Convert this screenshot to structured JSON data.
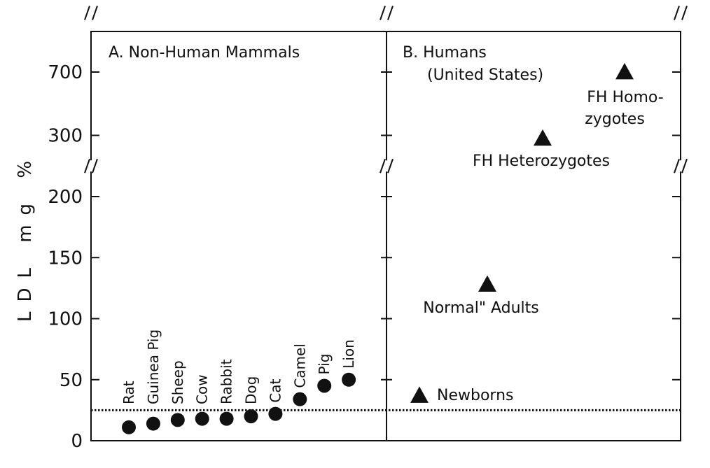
{
  "chart_data": {
    "type": "scatter",
    "ylabel": "LDL mg %",
    "y_ticks": [
      "0",
      "50",
      "100",
      "150",
      "200",
      "300",
      "700"
    ],
    "y_axis_breaks": [
      250,
      500
    ],
    "reference_line": 25,
    "panels": [
      {
        "title": "A. Non-Human Mammals",
        "marker": "circle",
        "points": [
          {
            "label": "Rat",
            "y": 11
          },
          {
            "label": "Guinea Pig",
            "y": 14
          },
          {
            "label": "Sheep",
            "y": 17
          },
          {
            "label": "Cow",
            "y": 18
          },
          {
            "label": "Rabbit",
            "y": 18
          },
          {
            "label": "Dog",
            "y": 20
          },
          {
            "label": "Cat",
            "y": 22
          },
          {
            "label": "Camel",
            "y": 34
          },
          {
            "label": "Pig",
            "y": 45
          },
          {
            "label": "Lion",
            "y": 50
          }
        ]
      },
      {
        "title_line1": "B. Humans",
        "title_line2": "(United States)",
        "marker": "triangle",
        "points": [
          {
            "label": "Newborns",
            "y": 37
          },
          {
            "label": "Normal\" Adults",
            "y": 128
          },
          {
            "label": "FH Heterozygotes",
            "y": 295
          },
          {
            "label_line1": "FH Homo-",
            "label_line2": "zygotes",
            "y": 700
          }
        ]
      }
    ]
  }
}
